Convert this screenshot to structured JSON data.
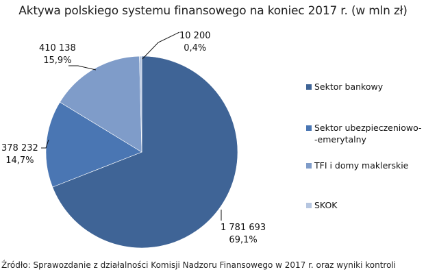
{
  "title": "Aktywa polskiego systemu finansowego na koniec 2017 r. (w mln zł)",
  "source": "Źródło: Sprawozdanie z działalności Komisji Nadzoru Finansowego w 2017 r. oraz wyniki kontroli",
  "legend": {
    "items": [
      {
        "label": "Sektor bankowy",
        "color": "#3f6496"
      },
      {
        "label_line1": "Sektor ubezpieczeniowo-",
        "label_line2": "-emerytalny",
        "color": "#4a76b3"
      },
      {
        "label": "TFI i domy maklerskie",
        "color": "#7f9cc9"
      },
      {
        "label": "SKOK",
        "color": "#b6c6e0"
      }
    ]
  },
  "labels": {
    "bank": {
      "value": "1 781 693",
      "pct": "69,1%"
    },
    "insurance": {
      "value": "378 232",
      "pct": "14,7%"
    },
    "tfi": {
      "value": "410 138",
      "pct": "15,9%"
    },
    "skok": {
      "value": "10 200",
      "pct": "0,4%"
    }
  },
  "chart_data": {
    "type": "pie",
    "title": "Aktywa polskiego systemu finansowego na koniec 2017 r. (w mln zł)",
    "categories": [
      "Sektor bankowy",
      "Sektor ubezpieczeniowo-emerytalny",
      "TFI i domy maklerskie",
      "SKOK"
    ],
    "values": [
      1781693,
      378232,
      410138,
      10200
    ],
    "percentages": [
      69.1,
      14.7,
      15.9,
      0.4
    ],
    "colors": [
      "#3f6496",
      "#4a76b3",
      "#7f9cc9",
      "#b6c6e0"
    ],
    "legend_position": "right",
    "start_angle": "12 o'clock, clockwise",
    "unit": "mln zł"
  }
}
